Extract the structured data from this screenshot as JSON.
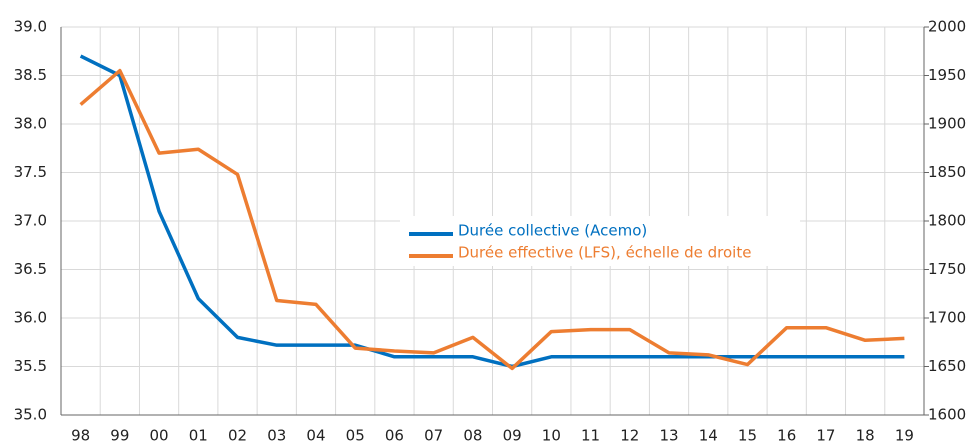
{
  "chart_data": {
    "type": "line",
    "categories": [
      "98",
      "99",
      "00",
      "01",
      "02",
      "03",
      "04",
      "05",
      "06",
      "07",
      "08",
      "09",
      "10",
      "11",
      "12",
      "13",
      "14",
      "15",
      "16",
      "17",
      "18",
      "19"
    ],
    "series": [
      {
        "name": "Durée collective (Acemo)",
        "color": "#0070c0",
        "axis": "y",
        "values": [
          38.7,
          38.5,
          37.1,
          36.2,
          35.8,
          35.72,
          35.72,
          35.72,
          35.6,
          35.6,
          35.6,
          35.5,
          35.6,
          35.6,
          35.6,
          35.6,
          35.6,
          35.6,
          35.6,
          35.6,
          35.6,
          35.6
        ]
      },
      {
        "name": "Durée effective (LFS), échelle de droite",
        "color": "#ed7d31",
        "axis": "y2",
        "values": [
          1920,
          1955,
          1870,
          1874,
          1848,
          1718,
          1714,
          1669,
          1666,
          1664,
          1680,
          1648,
          1686,
          1688,
          1688,
          1664,
          1662,
          1652,
          1690,
          1690,
          1677,
          1679
        ]
      }
    ],
    "ylim": [
      35,
      39
    ],
    "yticks": [
      {
        "value": 35,
        "label": "35.0"
      },
      35.5,
      {
        "value": 36,
        "label": "36.0"
      },
      36.5,
      {
        "value": 37,
        "label": "37.0"
      },
      37.5,
      {
        "value": 38,
        "label": "38.0"
      },
      38.5,
      {
        "value": 39,
        "label": "39.0"
      }
    ],
    "y2lim": [
      1600,
      2000
    ],
    "y2ticks": [
      1600,
      1650,
      1700,
      1750,
      1800,
      1850,
      1900,
      1950,
      2000
    ],
    "grid": true
  }
}
